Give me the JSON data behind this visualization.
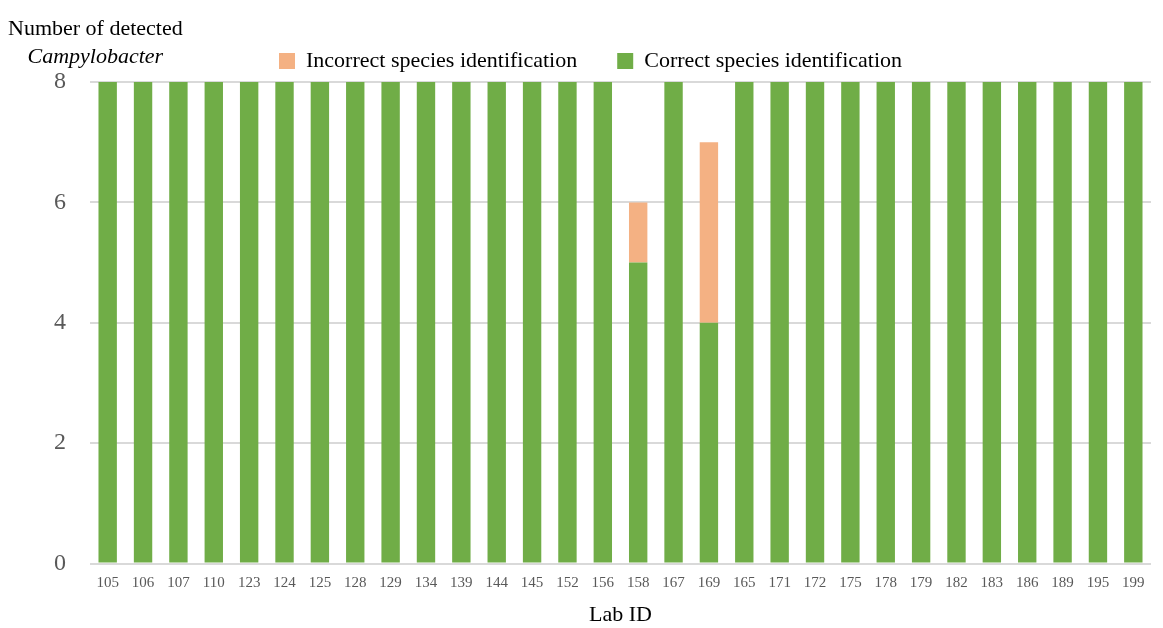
{
  "chart_data": {
    "type": "bar",
    "stacked": true,
    "xlabel": "Lab ID",
    "ylabel": "Number of detected\nCampylobacter",
    "categories": [
      "105",
      "106",
      "107",
      "110",
      "123",
      "124",
      "125",
      "128",
      "129",
      "134",
      "139",
      "144",
      "145",
      "152",
      "156",
      "158",
      "167",
      "169",
      "165",
      "171",
      "172",
      "175",
      "178",
      "179",
      "182",
      "183",
      "186",
      "189",
      "195",
      "199"
    ],
    "series": [
      {
        "name": "Correct species identification",
        "color": "#70ad47",
        "values": [
          8,
          8,
          8,
          8,
          8,
          8,
          8,
          8,
          8,
          8,
          8,
          8,
          8,
          8,
          8,
          5,
          8,
          4,
          8,
          8,
          8,
          8,
          8,
          8,
          8,
          8,
          8,
          8,
          8,
          8
        ]
      },
      {
        "name": "Incorrect species identification",
        "color": "#f4b183",
        "values": [
          0,
          0,
          0,
          0,
          0,
          0,
          0,
          0,
          0,
          0,
          0,
          0,
          0,
          0,
          0,
          1,
          0,
          3,
          0,
          0,
          0,
          0,
          0,
          0,
          0,
          0,
          0,
          0,
          0,
          0
        ]
      }
    ],
    "ylim": [
      0,
      8
    ],
    "yticks": [
      0,
      2,
      4,
      6,
      8
    ],
    "grid": "y",
    "legend": "top"
  }
}
